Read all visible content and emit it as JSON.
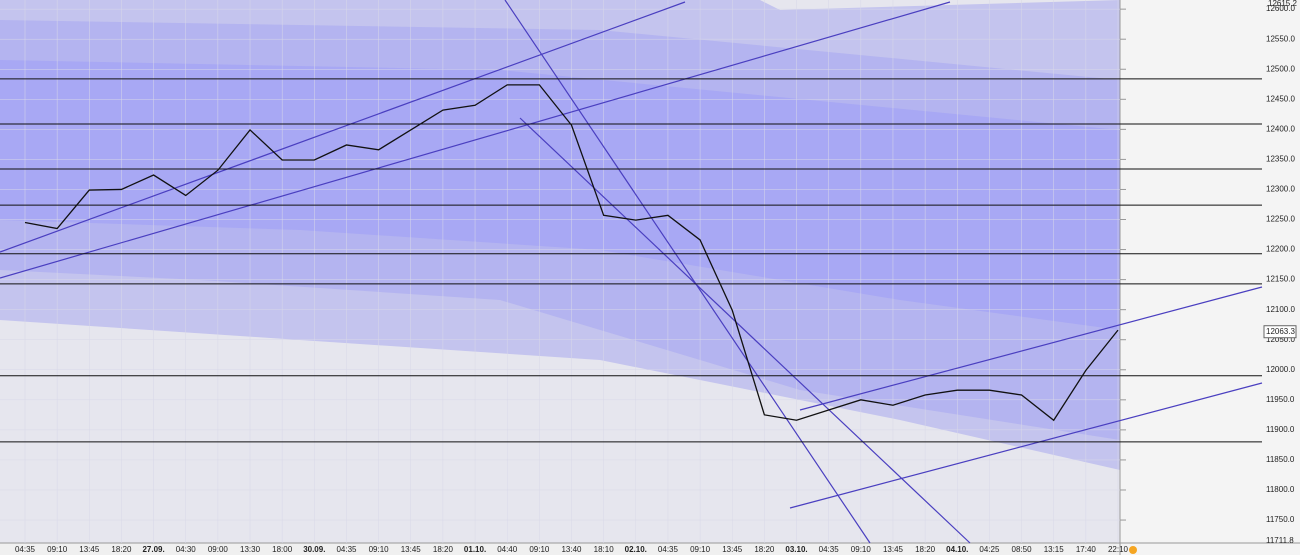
{
  "chart_data": {
    "type": "line",
    "categories": [
      "04:35",
      "09:10",
      "13:45",
      "18:20",
      "27.09.",
      "04:30",
      "09:00",
      "13:30",
      "18:00",
      "30.09.",
      "04:35",
      "09:10",
      "13:45",
      "18:20",
      "01.10.",
      "04:40",
      "09:10",
      "13:40",
      "18:10",
      "02.10.",
      "04:35",
      "09:10",
      "13:45",
      "18:20",
      "03.10.",
      "04:35",
      "09:10",
      "13:45",
      "18:20",
      "04.10.",
      "04:25",
      "08:50",
      "13:15",
      "17:40",
      "22:10"
    ],
    "values": [
      12245,
      12235,
      12299,
      12300,
      12324,
      12290,
      12332,
      12399,
      12349,
      12349,
      12374,
      12366,
      12399,
      12432,
      12440,
      12474,
      12474,
      12407,
      12257,
      12249,
      12257,
      12216,
      12099,
      11925,
      11916,
      11933,
      11950,
      11941,
      11958,
      11966,
      11966,
      11958,
      11916,
      11999,
      12066
    ],
    "color": "#111111",
    "levels": [
      12484,
      12409,
      12334,
      12274,
      12193,
      12143,
      11990,
      11880
    ],
    "last_price": 12063.3,
    "ylim": [
      11711.8,
      12615.2
    ],
    "yticks": [
      {
        "value": 11750,
        "label": "11750.0"
      },
      {
        "value": 11800,
        "label": "11800.0"
      },
      {
        "value": 11850,
        "label": "11850.0"
      },
      {
        "value": 11900,
        "label": "11900.0"
      },
      {
        "value": 11950,
        "label": "11950.0"
      },
      {
        "value": 12000,
        "label": "12000.0"
      },
      {
        "value": 12050,
        "label": "12050.0"
      },
      {
        "value": 12100,
        "label": "12100.0"
      },
      {
        "value": 12150,
        "label": "12150.0"
      },
      {
        "value": 12200,
        "label": "12200.0"
      },
      {
        "value": 12250,
        "label": "12250.0"
      },
      {
        "value": 12300,
        "label": "12300.0"
      },
      {
        "value": 12350,
        "label": "12350.0"
      },
      {
        "value": 12400,
        "label": "12400.0"
      },
      {
        "value": 12450,
        "label": "12450.0"
      },
      {
        "value": 12500,
        "label": "12500.0"
      },
      {
        "value": 12550,
        "label": "12550.0"
      },
      {
        "value": 12600,
        "label": "12600.0"
      }
    ],
    "grid": true
  }
}
